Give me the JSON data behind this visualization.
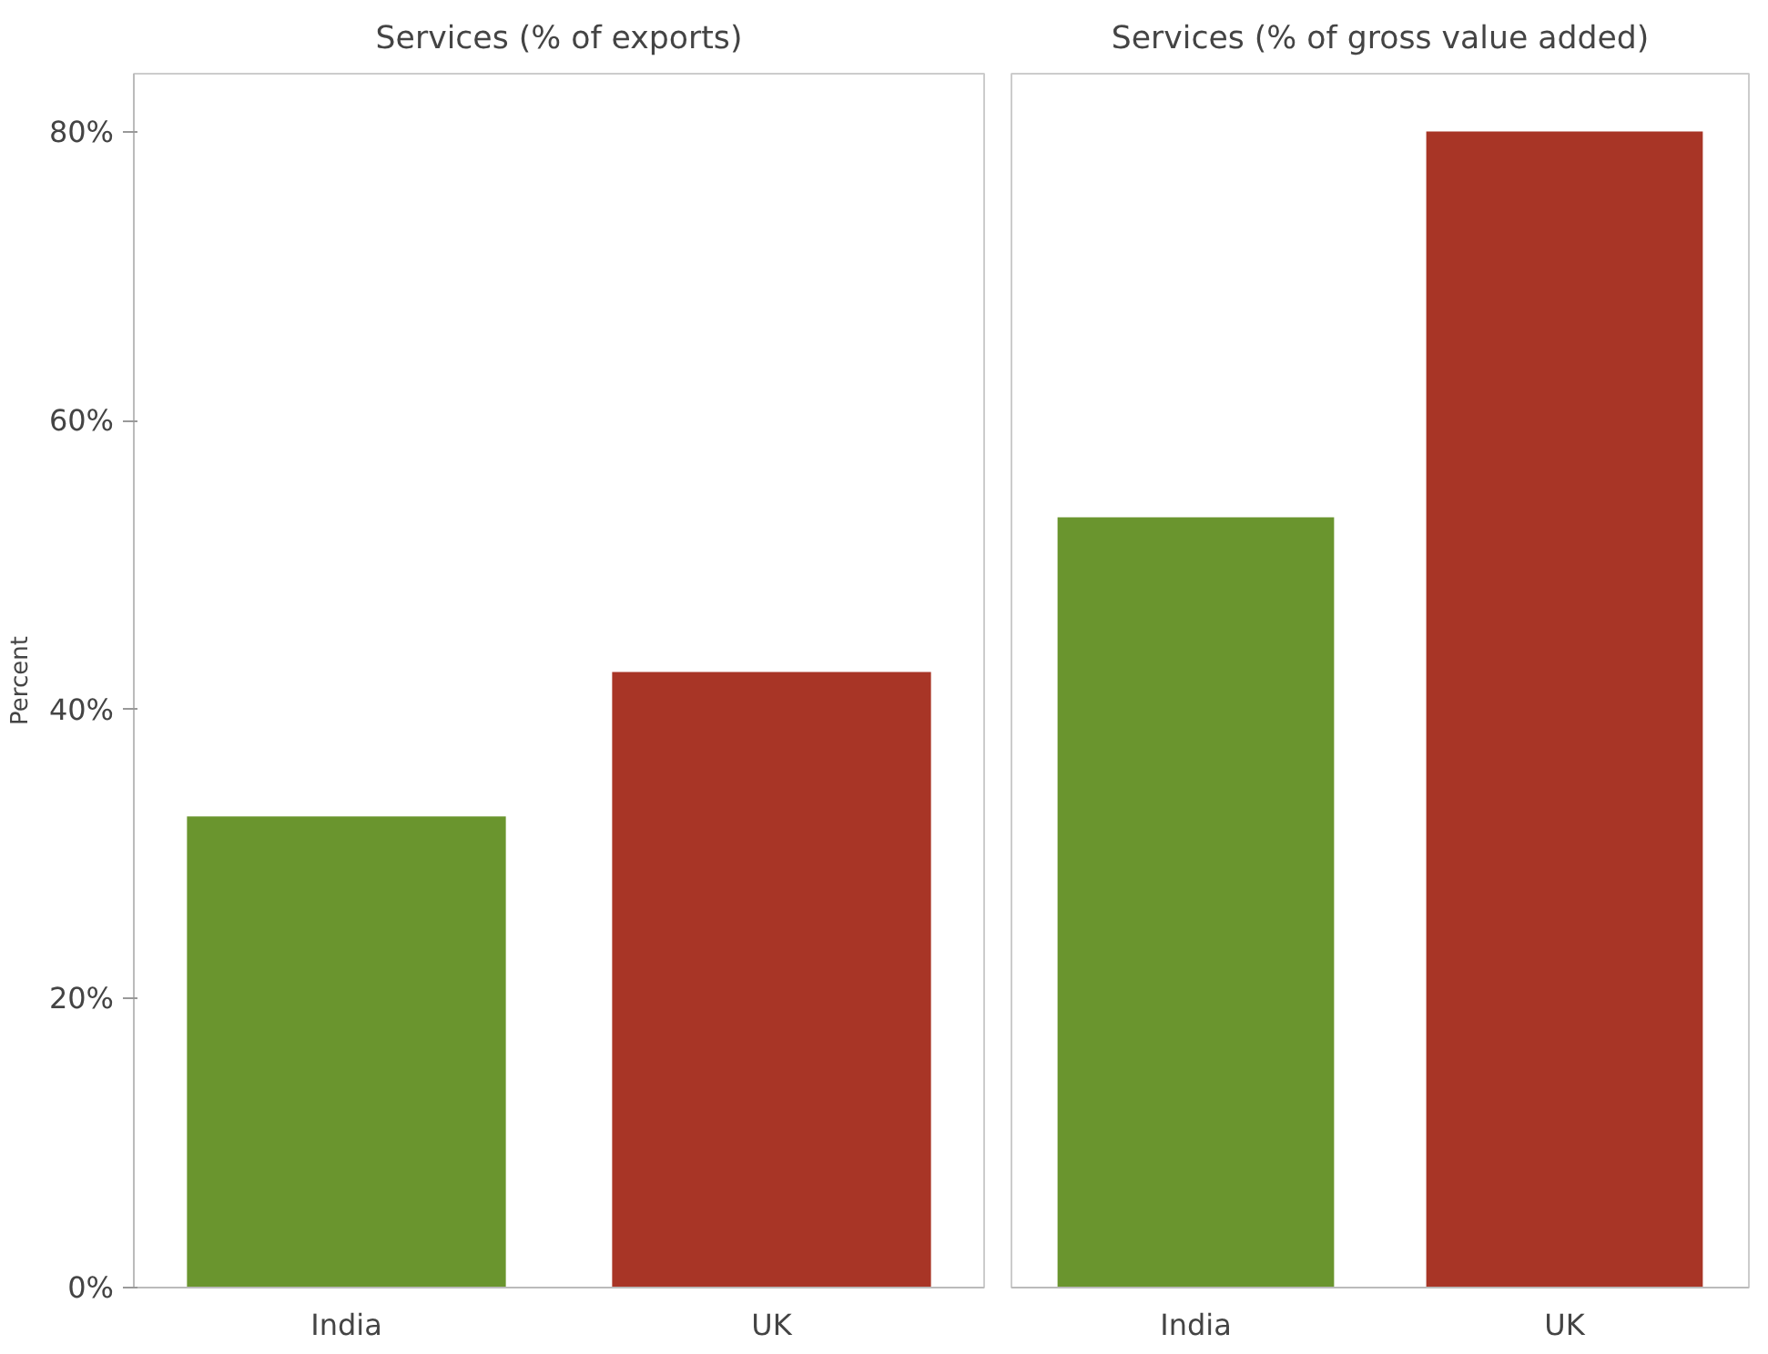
{
  "chart_data": [
    {
      "type": "bar",
      "title": "Services (% of exports)",
      "ylabel": "Percent",
      "categories": [
        "India",
        "UK"
      ],
      "values": [
        32.6,
        42.6
      ],
      "colors": [
        "#6a952e",
        "#a83526"
      ],
      "ylim": [
        0,
        84
      ],
      "yticks": [
        {
          "value": 0,
          "label": "0%"
        },
        {
          "value": 20,
          "label": "20%"
        },
        {
          "value": 40,
          "label": "40%"
        },
        {
          "value": 60,
          "label": "60%"
        },
        {
          "value": 80,
          "label": "80%"
        }
      ],
      "grid": false,
      "legend": false
    },
    {
      "type": "bar",
      "title": "Services (% of gross value added)",
      "categories": [
        "India",
        "UK"
      ],
      "values": [
        53.3,
        80
      ],
      "colors": [
        "#6a952e",
        "#a83526"
      ],
      "ylim": [
        0,
        84
      ],
      "grid": false,
      "legend": false,
      "tick_labels": "x"
    }
  ]
}
